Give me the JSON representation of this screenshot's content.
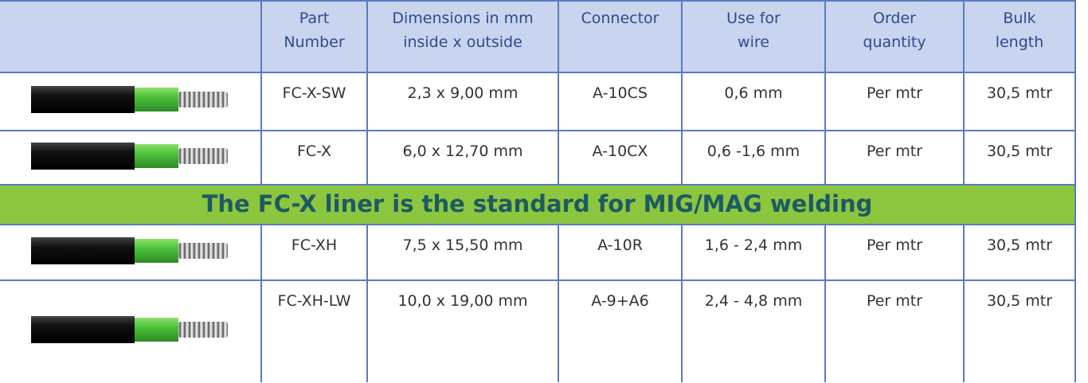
{
  "table": {
    "header": [
      [
        "Part",
        "Number"
      ],
      [
        "Dimensions in mm",
        "inside x outside"
      ],
      [
        "Connector"
      ],
      [
        "Use for",
        "wire"
      ],
      [
        "Order",
        "quantity"
      ],
      [
        "Bulk",
        "length"
      ]
    ],
    "body": [
      {
        "cells": [
          "FC-X-SW",
          "2,3 x 9,00 mm",
          "A-10CS",
          "0,6 mm",
          "Per mtr",
          "30,5 mtr"
        ]
      },
      {
        "cells": [
          "FC-X",
          "6,0 x 12,70 mm",
          "A-10CX",
          "0,6 -1,6 mm",
          "Per mtr",
          "30,5 mtr"
        ]
      },
      {
        "banner": "The FC-X liner is the standard for MIG/MAG welding"
      },
      {
        "cells": [
          "FC-XH",
          "7,5 x 15,50 mm",
          "A-10R",
          "1,6 - 2,4 mm",
          "Per mtr",
          "30,5 mtr"
        ]
      },
      {
        "cells": [
          "FC-XH-LW",
          "10,0 x 19,00 mm",
          "A-9+A6",
          "2,4 - 4,8 mm",
          "Per mtr",
          "30,5 mtr"
        ]
      }
    ]
  }
}
